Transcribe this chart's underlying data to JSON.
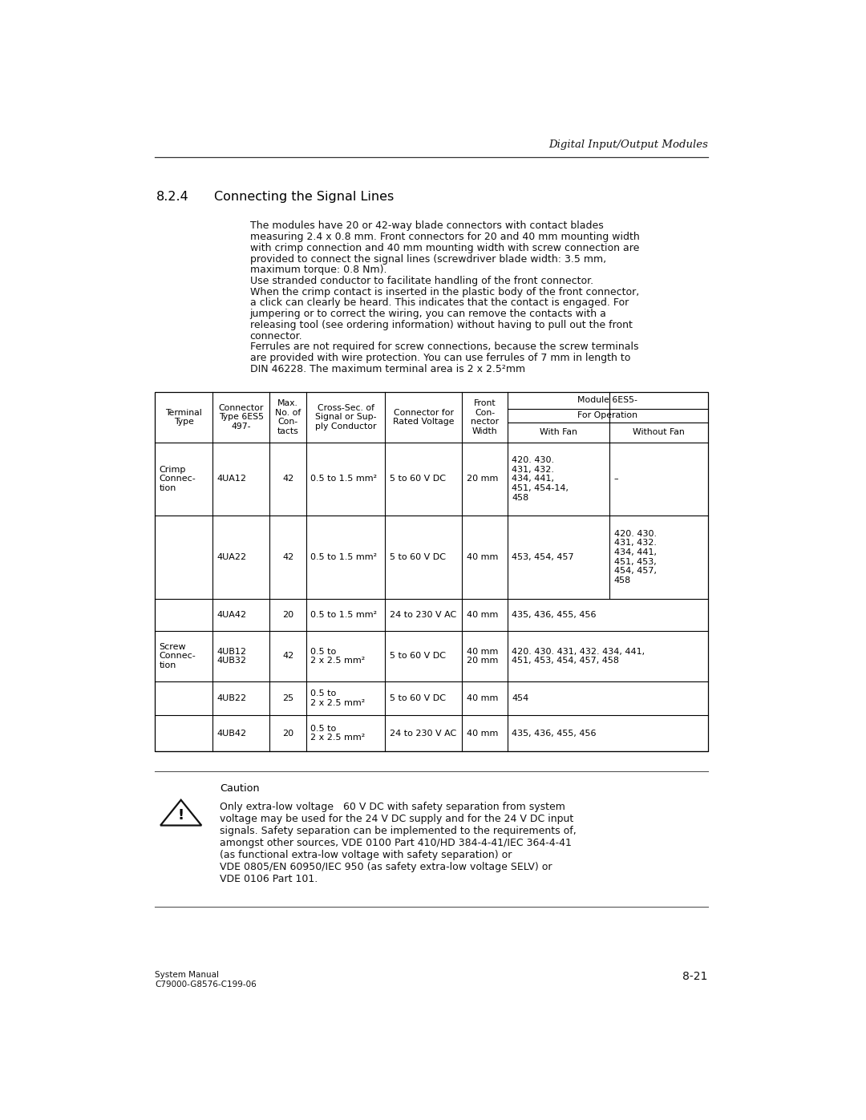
{
  "page_width": 10.8,
  "page_height": 13.97,
  "bg_color": "#ffffff",
  "header_italic": "Digital Input/Output Modules",
  "section_number": "8.2.4",
  "section_title": "Connecting the Signal Lines",
  "body_paragraphs": [
    [
      "The modules have 20 or 42-way blade connectors with contact blades",
      "measuring 2.4 x 0.8 mm. Front connectors for 20 and 40 mm mounting width",
      "with crimp connection and 40 mm mounting width with screw connection are",
      "provided to connect the signal lines (screwdriver blade width: 3.5 mm,",
      "maximum torque: 0.8 Nm)."
    ],
    [
      "Use stranded conductor to facilitate handling of the front connector."
    ],
    [
      "When the crimp contact is inserted in the plastic body of the front connector,",
      "a click can clearly be heard. This indicates that the contact is engaged. For",
      "jumpering or to correct the wiring, you can remove the contacts with a",
      "releasing tool (see ordering information) without having to pull out the front",
      "connector."
    ],
    [
      "Ferrules are not required for screw connections, because the screw terminals",
      "are provided with wire protection. You can use ferrules of 7 mm in length to",
      "DIN 46228. The maximum terminal area is 2 x 2.5²mm"
    ]
  ],
  "caution_title": "Caution",
  "caution_text": [
    "Only extra-low voltage   60 V DC with safety separation from system",
    "voltage may be used for the 24 V DC supply and for the 24 V DC input",
    "signals. Safety separation can be implemented to the requirements of,",
    "amongst other sources, VDE 0100 Part 410/HD 384-4-41/IEC 364-4-41",
    "(as functional extra-low voltage with safety separation) or",
    "VDE 0805/EN 60950/IEC 950 (as safety extra-low voltage SELV) or",
    "VDE 0106 Part 101."
  ],
  "footer_left1": "System Manual",
  "footer_left2": "C79000-G8576-C199-06",
  "footer_right": "8-21",
  "table_rows": [
    {
      "terminal": "Crimp\nConnec-\ntion",
      "connector": "4UA12",
      "max_contacts": "42",
      "cross_sec": "0.5 to 1.5 mm²",
      "rated_volt": "5 to 60 V DC",
      "front_width": "20 mm",
      "with_fan": "420. 430.\n431, 432.\n434, 441,\n451, 454-14,\n458",
      "without_fan": "–",
      "span_last": false
    },
    {
      "terminal": "",
      "connector": "4UA22",
      "max_contacts": "42",
      "cross_sec": "0.5 to 1.5 mm²",
      "rated_volt": "5 to 60 V DC",
      "front_width": "40 mm",
      "with_fan": "453, 454, 457",
      "without_fan": "420. 430.\n431, 432.\n434, 441,\n451, 453,\n454, 457,\n458",
      "span_last": false
    },
    {
      "terminal": "",
      "connector": "4UA42",
      "max_contacts": "20",
      "cross_sec": "0.5 to 1.5 mm²",
      "rated_volt": "24 to 230 V AC",
      "front_width": "40 mm",
      "with_fan": "435, 436, 455, 456",
      "without_fan": "",
      "span_last": true
    },
    {
      "terminal": "Screw\nConnec-\ntion",
      "connector": "4UB12\n4UB32",
      "max_contacts": "42",
      "cross_sec": "0.5 to\n2 x 2.5 mm²",
      "rated_volt": "5 to 60 V DC",
      "front_width": "40 mm\n20 mm",
      "with_fan": "420. 430. 431, 432. 434, 441,\n451, 453, 454, 457, 458",
      "without_fan": "",
      "span_last": true
    },
    {
      "terminal": "",
      "connector": "4UB22",
      "max_contacts": "25",
      "cross_sec": "0.5 to\n2 x 2.5 mm²",
      "rated_volt": "5 to 60 V DC",
      "front_width": "40 mm",
      "with_fan": "454",
      "without_fan": "",
      "span_last": true
    },
    {
      "terminal": "",
      "connector": "4UB42",
      "max_contacts": "20",
      "cross_sec": "0.5 to\n2 x 2.5 mm²",
      "rated_volt": "24 to 230 V AC",
      "front_width": "40 mm",
      "with_fan": "435, 436, 455, 456",
      "without_fan": "",
      "span_last": true
    }
  ]
}
